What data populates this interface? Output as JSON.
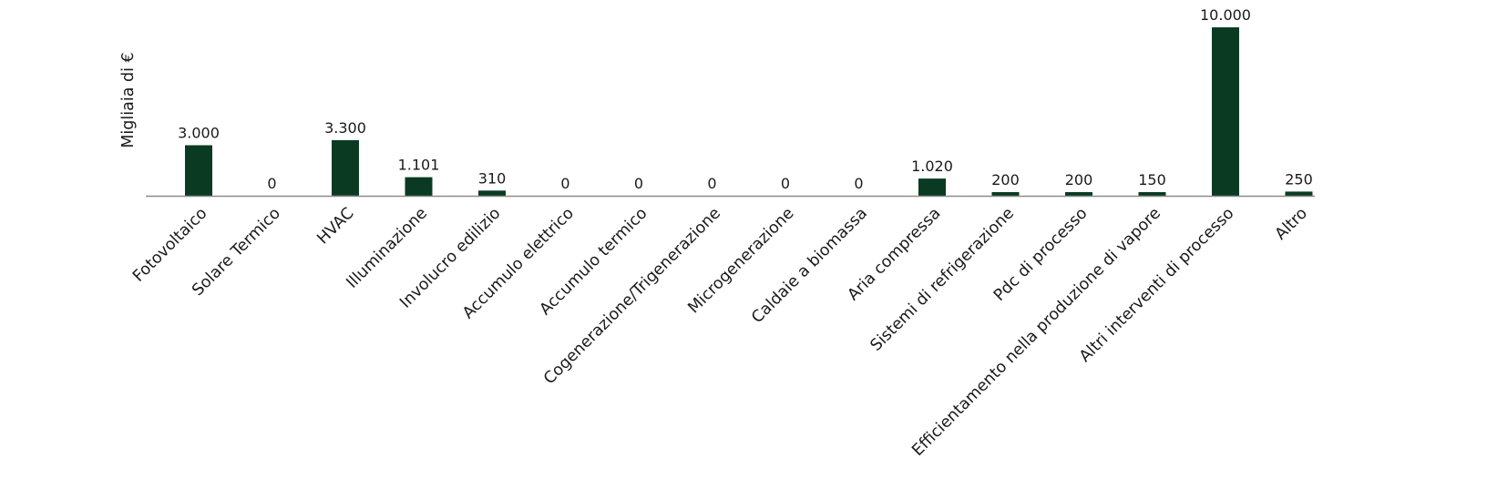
{
  "chart_data": {
    "type": "bar",
    "ylabel": "Migliaia di €",
    "xlabel": "",
    "title": "",
    "categories": [
      "Fotovoltaico",
      "Solare Termico",
      "HVAC",
      "Illuminazione",
      "Involucro edilizio",
      "Accumulo elettrico",
      "Accumulo termico",
      "Cogenerazione/Trigenerazione",
      "Microgenerazione",
      "Caldaie a biomassa",
      "Aria compressa",
      "Sistemi di refrigerazione",
      "Pdc di processo",
      "Efficientamento nella produzione di vapore",
      "Altri interventi di processo",
      "Altro"
    ],
    "values": [
      3000,
      0,
      3300,
      1101,
      310,
      0,
      0,
      0,
      0,
      0,
      1020,
      200,
      200,
      150,
      10000,
      250
    ],
    "value_labels": [
      "3.000",
      "0",
      "3.300",
      "1.101",
      "310",
      "0",
      "0",
      "0",
      "0",
      "0",
      "1.020",
      "200",
      "200",
      "150",
      "10.000",
      "250"
    ],
    "ylim": [
      0,
      10000
    ],
    "grid": false,
    "legend": "none",
    "colors": {
      "bar": "#0b3a22",
      "axis": "#8c8c8c"
    }
  }
}
